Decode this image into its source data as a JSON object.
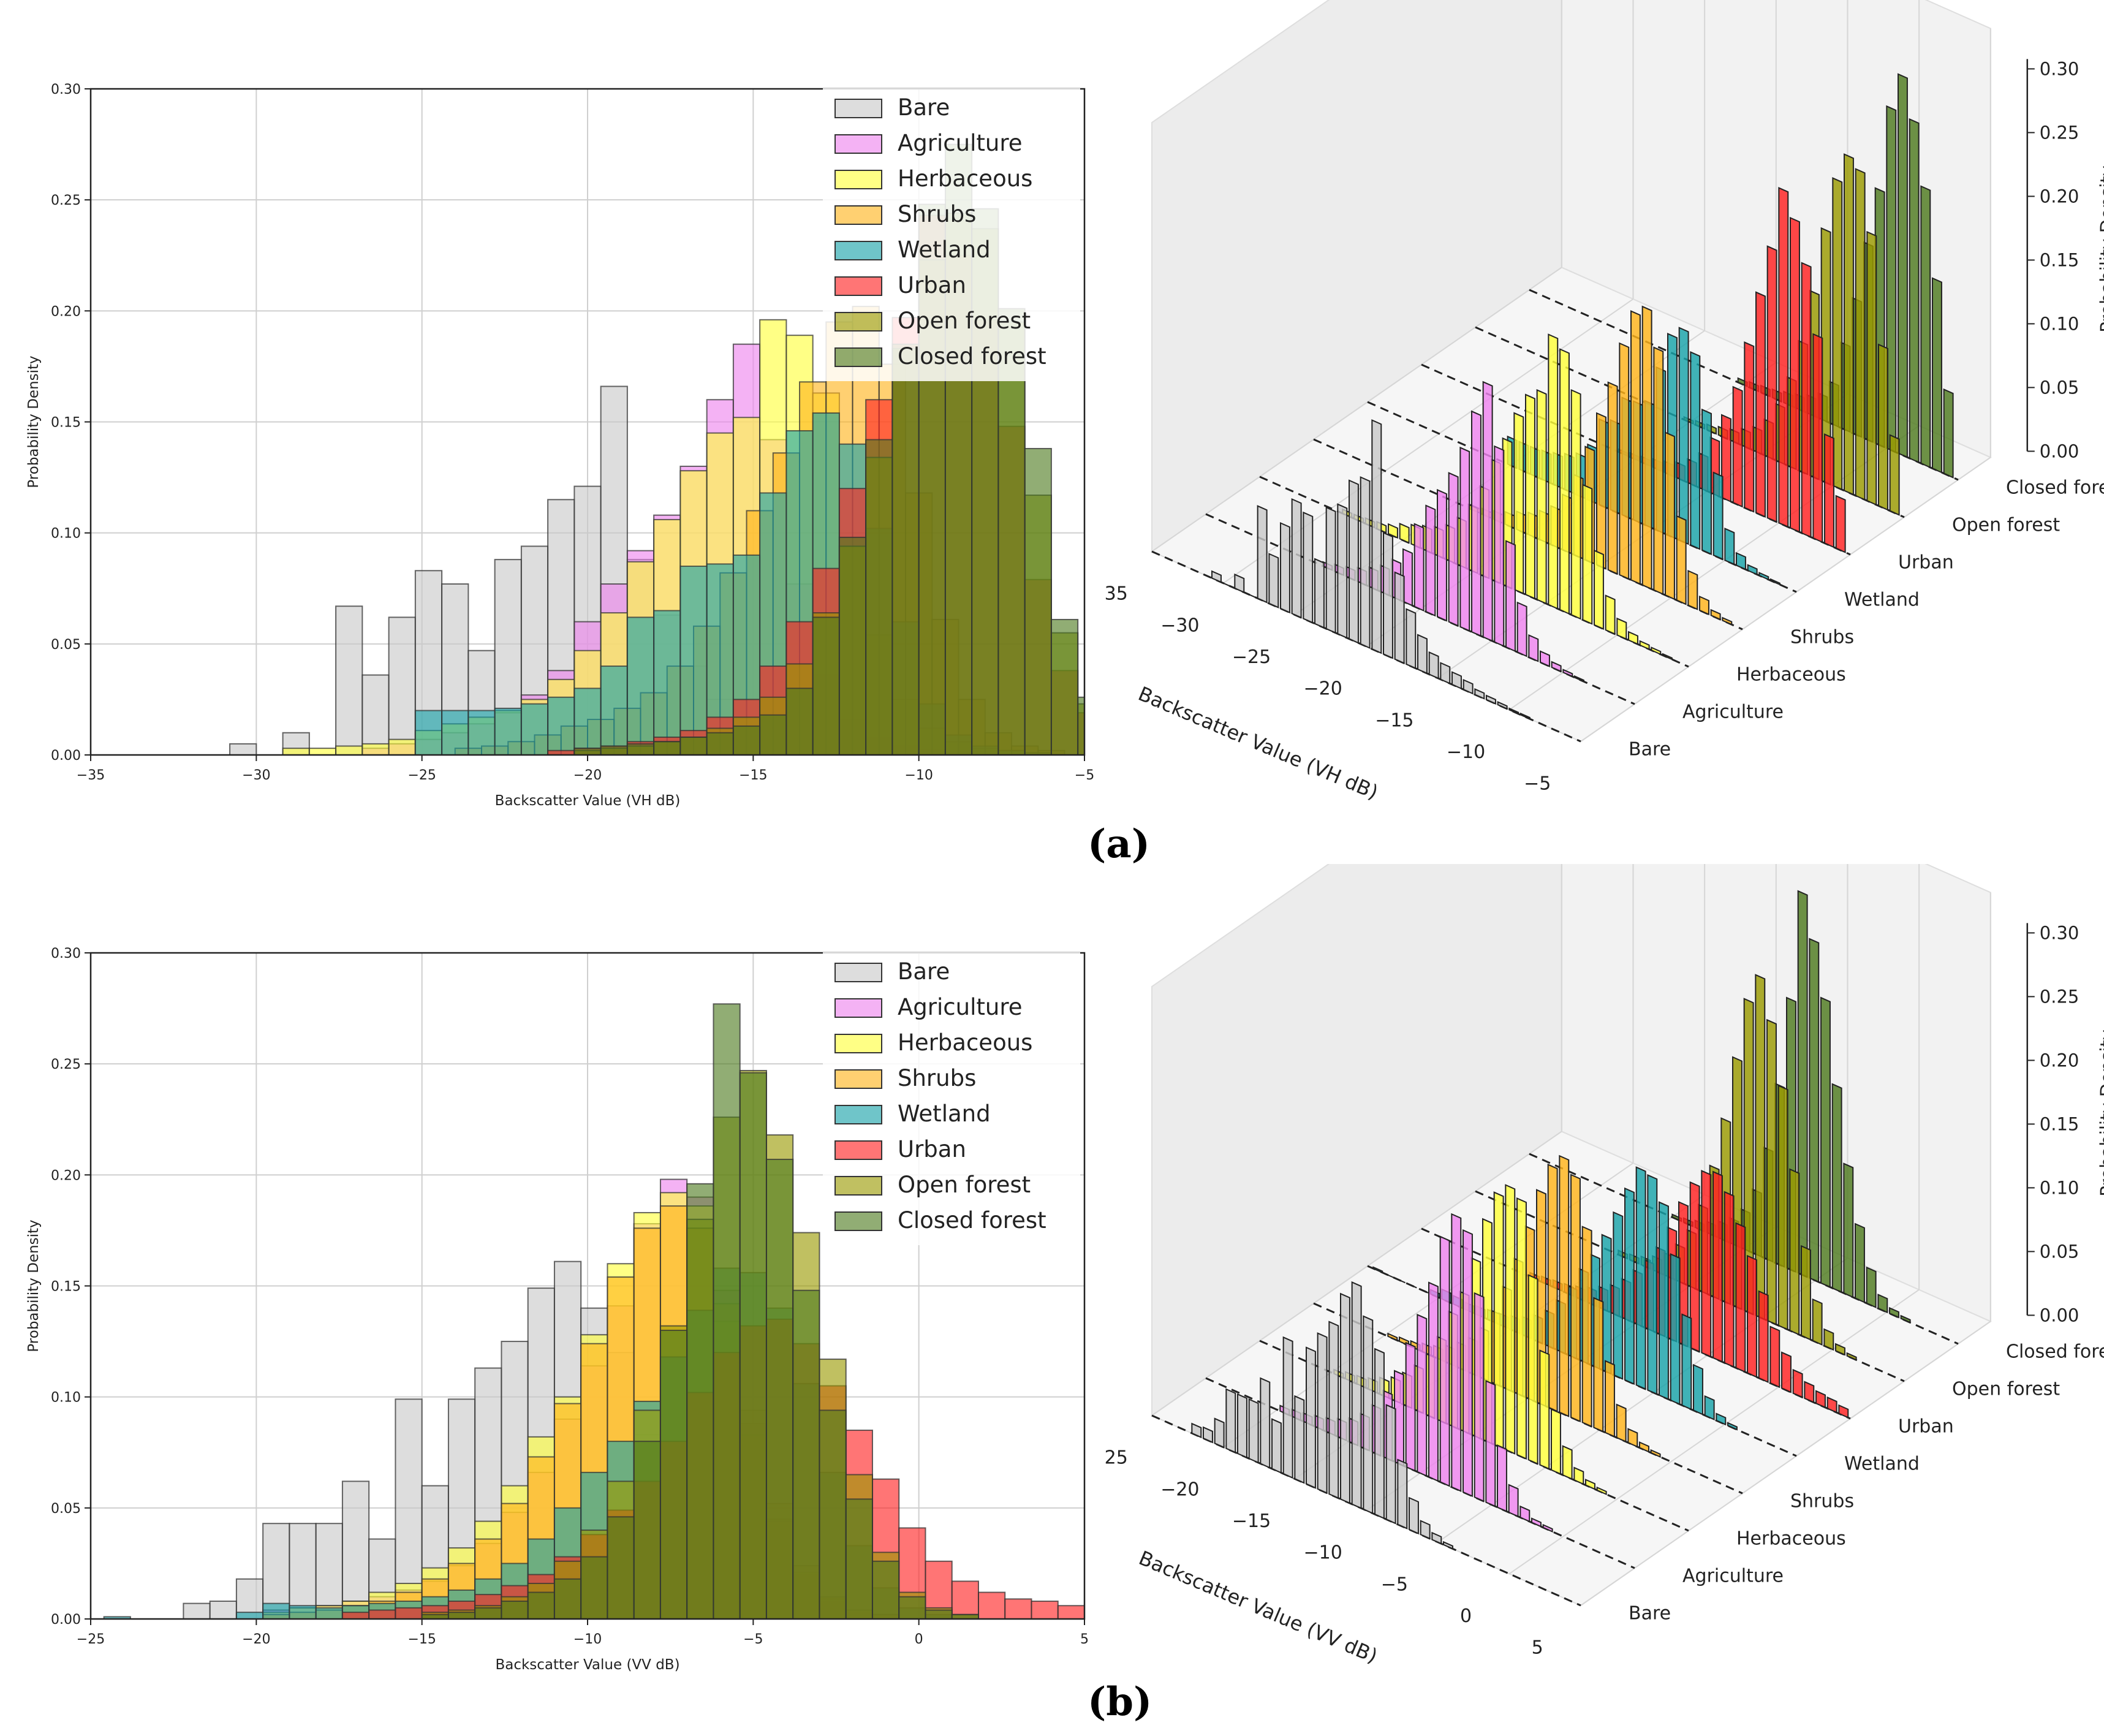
{
  "legend_labels": [
    "Bare",
    "Agriculture",
    "Herbaceous",
    "Shrubs",
    "Wetland",
    "Urban",
    "Open forest",
    "Closed forest"
  ],
  "colors": {
    "Bare": "#c8c8c8",
    "Agriculture": "#ee82ee",
    "Herbaceous": "#ffff3a",
    "Shrubs": "#ffb31a",
    "Wetland": "#17a2a8",
    "Urban": "#ff2020",
    "Open forest": "#9a9a00",
    "Closed forest": "#4e7a1e"
  },
  "panels": [
    {
      "id": "a",
      "label": "(a)"
    },
    {
      "id": "b",
      "label": "(b)"
    }
  ],
  "chart_data": [
    {
      "type": "bar",
      "title": "",
      "xlabel": "Backscatter Value (VH dB)",
      "ylabel": "Probability Density",
      "xlim": [
        -35,
        -5
      ],
      "ylim": [
        0,
        0.3
      ],
      "xticks": [
        -35,
        -30,
        -25,
        -20,
        -15,
        -10,
        -5
      ],
      "xtick_labels": [
        "−35",
        "−30",
        "−25",
        "−20",
        "−15",
        "−10",
        "−5"
      ],
      "yticks": [
        0,
        0.05,
        0.1,
        0.15,
        0.2,
        0.25,
        0.3
      ],
      "ytick_labels": [
        "0.00",
        "0.05",
        "0.10",
        "0.15",
        "0.20",
        "0.25",
        "0.30"
      ],
      "grid": true,
      "legend_position": "top-right",
      "bin_width": 0.8,
      "series": [
        {
          "name": "Bare",
          "start": -30.8,
          "values": [
            0.005,
            0,
            0.01,
            0,
            0.067,
            0.036,
            0.062,
            0.083,
            0.077,
            0.047,
            0.088,
            0.094,
            0.115,
            0.121,
            0.166,
            0.088,
            0.063,
            0.04,
            0.025,
            0.016,
            0.012,
            0.009,
            0.007,
            0.004,
            0.003,
            0.002,
            0.001,
            0.001
          ]
        },
        {
          "name": "Agriculture",
          "start": -26.8,
          "values": [
            0.003,
            0.005,
            0.007,
            0.01,
            0.014,
            0.019,
            0.027,
            0.038,
            0.06,
            0.077,
            0.092,
            0.108,
            0.13,
            0.16,
            0.185,
            0.142,
            0.077,
            0.036,
            0.016,
            0.008,
            0.004,
            0.002,
            0.001
          ]
        },
        {
          "name": "Herbaceous",
          "start": -29.2,
          "values": [
            0.003,
            0.003,
            0.004,
            0.005,
            0.007,
            0.011,
            0.014,
            0.017,
            0.02,
            0.025,
            0.034,
            0.047,
            0.064,
            0.087,
            0.106,
            0.128,
            0.145,
            0.152,
            0.196,
            0.189,
            0.163,
            0.098,
            0.054,
            0.025,
            0.012,
            0.006,
            0.003,
            0.002,
            0.001
          ]
        },
        {
          "name": "Shrubs",
          "start": -24.0,
          "values": [
            0.003,
            0.004,
            0.006,
            0.009,
            0.013,
            0.016,
            0.021,
            0.028,
            0.04,
            0.058,
            0.082,
            0.11,
            0.136,
            0.168,
            0.195,
            0.202,
            0.176,
            0.118,
            0.061,
            0.025,
            0.01,
            0.004,
            0.002
          ]
        },
        {
          "name": "Wetland",
          "start": -25.2,
          "values": [
            0.02,
            0.02,
            0.02,
            0.021,
            0.023,
            0.026,
            0.03,
            0.04,
            0.062,
            0.065,
            0.085,
            0.086,
            0.09,
            0.118,
            0.146,
            0.154,
            0.14,
            0.102,
            0.06,
            0.023,
            0.009,
            0.004,
            0.002,
            0.001
          ]
        },
        {
          "name": "Urban",
          "start": -21.2,
          "values": [
            0.002,
            0.003,
            0.004,
            0.006,
            0.008,
            0.011,
            0.017,
            0.025,
            0.04,
            0.06,
            0.084,
            0.12,
            0.16,
            0.197,
            0.243,
            0.225,
            0.196,
            0.148,
            0.079,
            0.038,
            0.019,
            0.012,
            0.01,
            0.007,
            0.004,
            0.003,
            0.002,
            0.002
          ]
        },
        {
          "name": "Open forest",
          "start": -20.4,
          "values": [
            0.002,
            0.003,
            0.004,
            0.006,
            0.008,
            0.012,
            0.017,
            0.026,
            0.041,
            0.064,
            0.094,
            0.134,
            0.183,
            0.223,
            0.244,
            0.237,
            0.195,
            0.117,
            0.055,
            0.023,
            0.01,
            0.004,
            0.002
          ]
        },
        {
          "name": "Closed forest",
          "start": -20.4,
          "values": [
            0.003,
            0.004,
            0.005,
            0.006,
            0.008,
            0.01,
            0.013,
            0.018,
            0.03,
            0.062,
            0.098,
            0.142,
            0.185,
            0.248,
            0.275,
            0.246,
            0.201,
            0.138,
            0.061,
            0.026,
            0.012,
            0.005,
            0.002
          ]
        }
      ],
      "view3d": {
        "zlabel": "Probability Density",
        "zticks": [
          "0.00",
          "0.05",
          "0.10",
          "0.15",
          "0.20",
          "0.25",
          "0.30"
        ],
        "category_axis": [
          "Bare",
          "Agriculture",
          "Herbaceous",
          "Shrubs",
          "Wetland",
          "Urban",
          "Open forest",
          "Closed forest"
        ]
      }
    },
    {
      "type": "bar",
      "title": "",
      "xlabel": "Backscatter Value (VV dB)",
      "ylabel": "Probability Density",
      "xlim": [
        -25,
        5
      ],
      "ylim": [
        0,
        0.3
      ],
      "xticks": [
        -25,
        -20,
        -15,
        -10,
        -5,
        0,
        5
      ],
      "xtick_labels": [
        "−25",
        "−20",
        "−15",
        "−10",
        "−5",
        "0",
        "5"
      ],
      "yticks": [
        0,
        0.05,
        0.1,
        0.15,
        0.2,
        0.25,
        0.3
      ],
      "ytick_labels": [
        "0.00",
        "0.05",
        "0.10",
        "0.15",
        "0.20",
        "0.25",
        "0.30"
      ],
      "grid": true,
      "legend_position": "top-right",
      "bin_width": 0.8,
      "series": [
        {
          "name": "Bare",
          "start": -22.2,
          "values": [
            0.007,
            0.008,
            0.018,
            0.043,
            0.043,
            0.043,
            0.062,
            0.036,
            0.099,
            0.06,
            0.099,
            0.113,
            0.125,
            0.149,
            0.161,
            0.14,
            0.12,
            0.083,
            0.047,
            0.023,
            0.01,
            0.005,
            0.002
          ]
        },
        {
          "name": "Agriculture",
          "start": -19.8,
          "values": [
            0.004,
            0.005,
            0.006,
            0.008,
            0.01,
            0.013,
            0.017,
            0.024,
            0.034,
            0.048,
            0.066,
            0.09,
            0.114,
            0.141,
            0.178,
            0.198,
            0.19,
            0.148,
            0.088,
            0.045,
            0.02,
            0.008,
            0.003,
            0.002
          ]
        },
        {
          "name": "Herbaceous",
          "start": -19.8,
          "values": [
            0.003,
            0.005,
            0.006,
            0.008,
            0.012,
            0.016,
            0.023,
            0.032,
            0.044,
            0.06,
            0.082,
            0.1,
            0.128,
            0.16,
            0.183,
            0.192,
            0.186,
            0.134,
            0.083,
            0.044,
            0.021,
            0.009,
            0.004,
            0.002
          ]
        },
        {
          "name": "Shrubs",
          "start": -19.8,
          "values": [
            0.002,
            0.003,
            0.004,
            0.006,
            0.008,
            0.012,
            0.018,
            0.025,
            0.036,
            0.052,
            0.073,
            0.097,
            0.124,
            0.154,
            0.176,
            0.186,
            0.176,
            0.142,
            0.094,
            0.052,
            0.024,
            0.01,
            0.004,
            0.002
          ]
        },
        {
          "name": "Wetland",
          "start": -24.6,
          "values": [
            0.001,
            0,
            0,
            0,
            0,
            0.003,
            0.007,
            0.006,
            0.005,
            0.006,
            0.007,
            0.008,
            0.01,
            0.013,
            0.018,
            0.025,
            0.036,
            0.05,
            0.066,
            0.08,
            0.098,
            0.118,
            0.139,
            0.158,
            0.156,
            0.14,
            0.106,
            0.066,
            0.033,
            0.014,
            0.005,
            0.002
          ]
        },
        {
          "name": "Urban",
          "start": -17.4,
          "values": [
            0.003,
            0.004,
            0.005,
            0.006,
            0.008,
            0.011,
            0.015,
            0.02,
            0.028,
            0.038,
            0.049,
            0.062,
            0.08,
            0.102,
            0.12,
            0.132,
            0.135,
            0.124,
            0.105,
            0.085,
            0.063,
            0.041,
            0.026,
            0.017,
            0.012,
            0.009,
            0.008,
            0.006,
            0.005,
            0.004,
            0.003,
            0.002
          ]
        },
        {
          "name": "Open forest",
          "start": -15.0,
          "values": [
            0.003,
            0.004,
            0.006,
            0.01,
            0.016,
            0.026,
            0.04,
            0.062,
            0.094,
            0.132,
            0.18,
            0.226,
            0.247,
            0.218,
            0.174,
            0.117,
            0.065,
            0.03,
            0.012,
            0.005,
            0.002
          ]
        },
        {
          "name": "Closed forest",
          "start": -15.0,
          "values": [
            0.002,
            0.003,
            0.005,
            0.008,
            0.012,
            0.018,
            0.028,
            0.046,
            0.08,
            0.13,
            0.196,
            0.277,
            0.246,
            0.207,
            0.148,
            0.094,
            0.054,
            0.026,
            0.01,
            0.004,
            0.002
          ]
        }
      ],
      "view3d": {
        "zlabel": "Probability Density",
        "zticks": [
          "0.00",
          "0.05",
          "0.10",
          "0.15",
          "0.20",
          "0.25",
          "0.30"
        ],
        "category_axis": [
          "Bare",
          "Agriculture",
          "Herbaceous",
          "Shrubs",
          "Wetland",
          "Urban",
          "Open forest",
          "Closed forest"
        ]
      }
    }
  ]
}
